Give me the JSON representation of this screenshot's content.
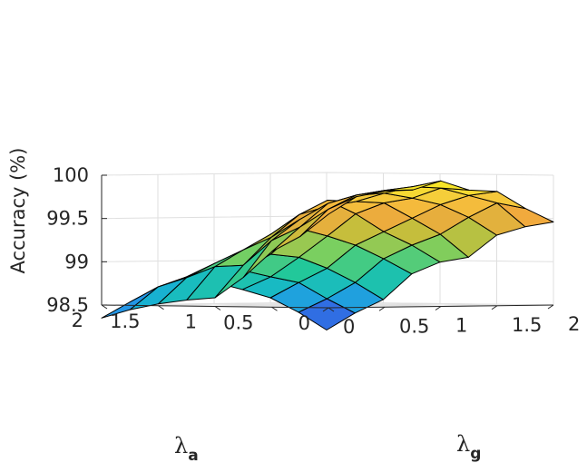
{
  "chart_data": {
    "type": "surface",
    "title": "",
    "zlabel": "Accuracy (%)",
    "xlabel_symbol": "λ",
    "xlabel_sub": "a",
    "ylabel_symbol": "λ",
    "ylabel_sub": "g",
    "xlim": [
      0,
      2
    ],
    "ylim": [
      0,
      2
    ],
    "zlim": [
      98.5,
      100
    ],
    "x_ticks": [
      0,
      0.5,
      1,
      1.5,
      2
    ],
    "y_ticks": [
      0,
      0.5,
      1,
      1.5,
      2
    ],
    "z_ticks": [
      98.5,
      99,
      99.5,
      100
    ],
    "x_tick_labels": [
      "0",
      "0.5",
      "1",
      "1.5",
      "2"
    ],
    "y_tick_labels": [
      "0",
      "0.5",
      "1",
      "1.5",
      "2"
    ],
    "z_tick_labels": [
      "98.5",
      "99",
      "99.5",
      "100"
    ],
    "grid": true,
    "x": [
      0,
      0.25,
      0.5,
      0.75,
      1,
      1.25,
      1.5,
      1.75,
      2
    ],
    "y": [
      0,
      0.25,
      0.5,
      0.75,
      1,
      1.25,
      1.5,
      1.75,
      2
    ],
    "z": [
      [
        99.58,
        99.78,
        99.84,
        99.85,
        99.95,
        99.84,
        99.82,
        99.62,
        99.46
      ],
      [
        99.32,
        99.63,
        99.79,
        99.84,
        99.88,
        99.86,
        99.77,
        99.68,
        99.4
      ],
      [
        99.14,
        99.42,
        99.69,
        99.78,
        99.8,
        99.74,
        99.66,
        99.51,
        99.3
      ],
      [
        98.84,
        99.26,
        99.5,
        99.65,
        99.7,
        99.68,
        99.5,
        99.31,
        99.04
      ],
      [
        98.6,
        98.97,
        99.29,
        99.55,
        99.71,
        99.55,
        99.34,
        99.18,
        98.98
      ],
      [
        98.57,
        98.95,
        99.14,
        99.32,
        99.38,
        99.29,
        99.18,
        99.02,
        98.84
      ],
      [
        98.52,
        98.82,
        98.98,
        99.09,
        99.08,
        99.04,
        98.91,
        98.74,
        98.54
      ],
      [
        98.45,
        98.71,
        98.82,
        98.9,
        98.89,
        98.81,
        98.74,
        98.55,
        98.38
      ],
      [
        98.35,
        98.53,
        98.66,
        98.79,
        98.75,
        98.66,
        98.56,
        98.39,
        98.18
      ]
    ],
    "colormap": [
      "#3e26a8",
      "#2c82f4",
      "#16b7cd",
      "#22c89a",
      "#78cf61",
      "#c3bf3c",
      "#f3a93d",
      "#f5d13a",
      "#fafb15"
    ]
  }
}
